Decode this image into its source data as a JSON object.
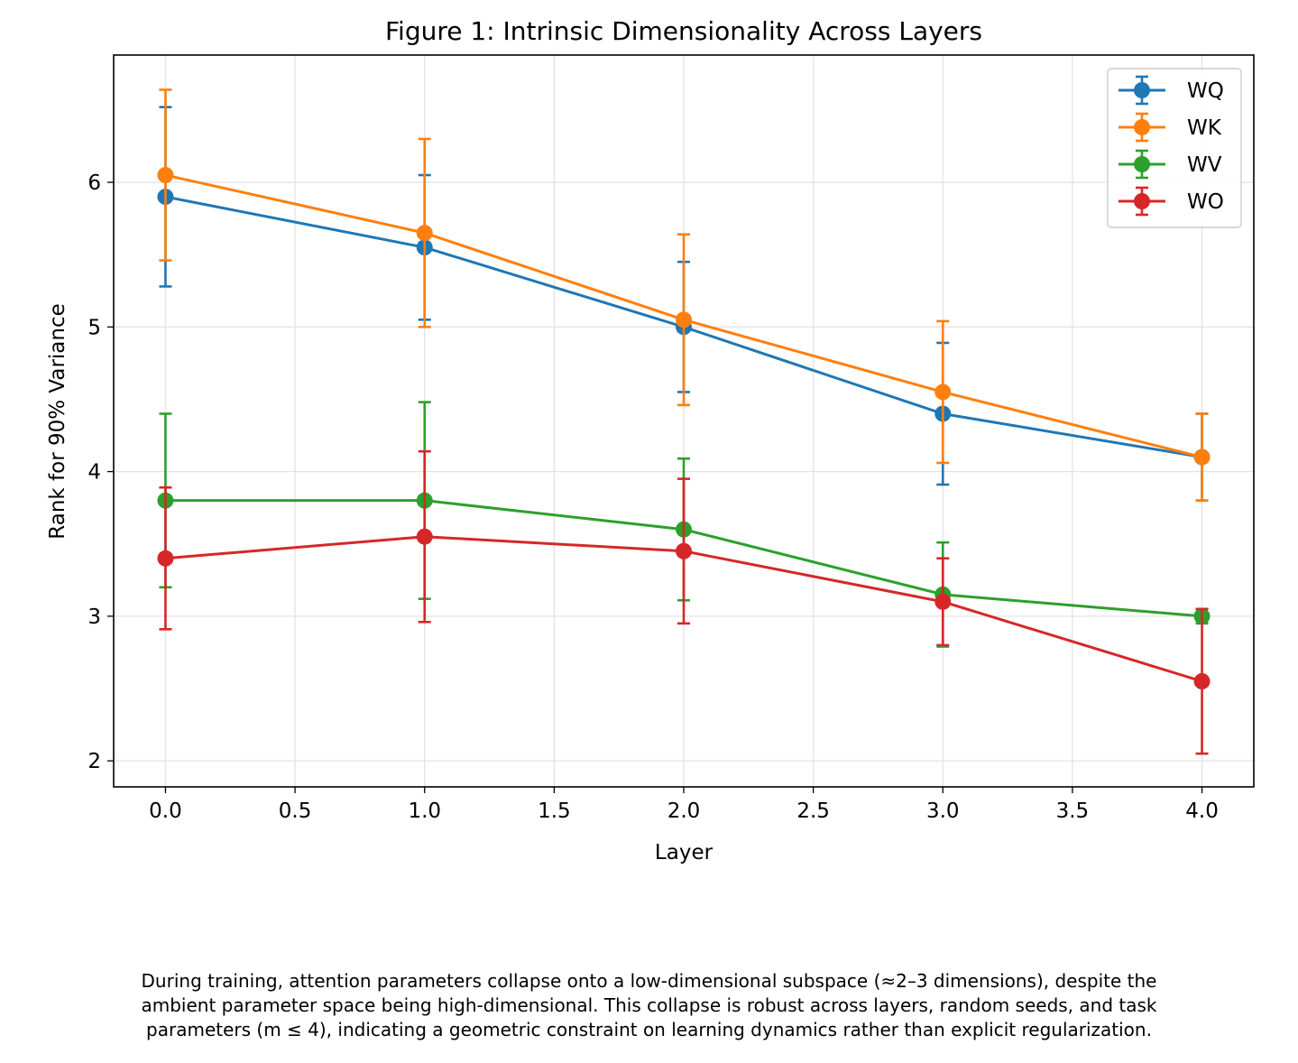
{
  "chart_data": {
    "type": "line",
    "title": "Figure 1: Intrinsic Dimensionality Across Layers",
    "xlabel": "Layer",
    "ylabel": "Rank for 90% Variance",
    "x": [
      0,
      1,
      2,
      3,
      4
    ],
    "xlim": [
      -0.2,
      4.2
    ],
    "ylim": [
      1.82,
      6.88
    ],
    "xticks": [
      0.0,
      0.5,
      1.0,
      1.5,
      2.0,
      2.5,
      3.0,
      3.5,
      4.0
    ],
    "xtick_labels": [
      "0.0",
      "0.5",
      "1.0",
      "1.5",
      "2.0",
      "2.5",
      "3.0",
      "3.5",
      "4.0"
    ],
    "yticks": [
      2,
      3,
      4,
      5,
      6
    ],
    "ytick_labels": [
      "2",
      "3",
      "4",
      "5",
      "6"
    ],
    "grid": true,
    "legend_position": "top-right",
    "series": [
      {
        "name": "WQ",
        "color": "#1f77b4",
        "values": [
          5.9,
          5.55,
          5.0,
          4.4,
          4.1
        ],
        "errors": [
          0.62,
          0.5,
          0.45,
          0.49,
          0.3
        ]
      },
      {
        "name": "WK",
        "color": "#ff7f0e",
        "values": [
          6.05,
          5.65,
          5.05,
          4.55,
          4.1
        ],
        "errors": [
          0.59,
          0.65,
          0.59,
          0.49,
          0.3
        ]
      },
      {
        "name": "WV",
        "color": "#2ca02c",
        "values": [
          3.8,
          3.8,
          3.6,
          3.15,
          3.0
        ],
        "errors": [
          0.6,
          0.68,
          0.49,
          0.36,
          0.05
        ]
      },
      {
        "name": "WO",
        "color": "#d62728",
        "values": [
          3.4,
          3.55,
          3.45,
          3.1,
          2.55
        ],
        "errors": [
          0.49,
          0.59,
          0.5,
          0.3,
          0.5
        ]
      }
    ]
  },
  "caption": {
    "lines": [
      "During training, attention parameters collapse onto a low-dimensional subspace (≈2–3 dimensions), despite the",
      "ambient parameter space being high-dimensional. This collapse is robust across layers, random seeds, and task",
      "parameters (m ≤ 4), indicating a geometric constraint on learning dynamics rather than explicit regularization."
    ]
  }
}
